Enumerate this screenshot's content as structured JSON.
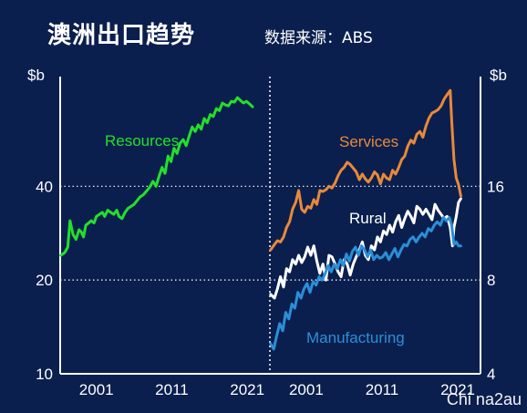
{
  "header": {
    "title": "澳洲出口趋势",
    "source": "数据来源：ABS"
  },
  "watermark": "Chi na2au",
  "chart_data": [
    {
      "type": "line",
      "panel": "left",
      "y_scale": "log",
      "unit_label": "$b",
      "ylim": [
        10,
        90
      ],
      "yticks": [
        10,
        20,
        40
      ],
      "xlim": [
        1996.2,
        2024.0
      ],
      "xticks": [
        2001,
        2011,
        2021
      ],
      "xtick_labels": [
        "2001",
        "2011",
        "2021"
      ],
      "grid": "horizontal dotted",
      "series": [
        {
          "name": "Resources",
          "color": "#22e02a",
          "x": [
            1996.3,
            1996.8,
            1997.2,
            1997.5,
            1997.9,
            1998.3,
            1998.7,
            1999.0,
            1999.3,
            1999.6,
            2000.0,
            2000.3,
            2000.7,
            2001.0,
            2001.4,
            2001.8,
            2002.1,
            2002.5,
            2002.9,
            2003.3,
            2003.7,
            2004.0,
            2004.4,
            2004.8,
            2005.2,
            2005.6,
            2006.0,
            2006.4,
            2006.8,
            2007.2,
            2007.6,
            2008.0,
            2008.5,
            2008.9,
            2009.3,
            2009.7,
            2010.1,
            2010.5,
            2010.9,
            2011.3,
            2011.7,
            2012.1,
            2012.5,
            2012.9,
            2013.3,
            2013.7,
            2014.1,
            2014.5,
            2014.9,
            2015.3,
            2015.7,
            2016.1,
            2016.5,
            2016.9,
            2017.3,
            2017.7,
            2018.1,
            2018.5,
            2018.9,
            2019.3,
            2019.7,
            2020.1,
            2020.5,
            2020.9,
            2021.3,
            2021.7
          ],
          "y": [
            24.0,
            24.5,
            25.5,
            31.0,
            28.0,
            27.0,
            29.0,
            28.5,
            27.5,
            30.0,
            30.5,
            31.0,
            30.5,
            32.0,
            32.5,
            33.0,
            32.0,
            33.5,
            33.0,
            32.5,
            33.5,
            32.0,
            31.5,
            33.0,
            34.0,
            34.5,
            35.0,
            36.0,
            37.0,
            37.5,
            38.5,
            39.5,
            41.5,
            40.0,
            43.0,
            46.0,
            44.0,
            50.0,
            48.0,
            53.0,
            51.0,
            55.0,
            56.5,
            54.0,
            58.0,
            62.0,
            60.0,
            63.0,
            61.0,
            66.0,
            64.0,
            68.0,
            67.0,
            71.0,
            70.0,
            74.0,
            73.0,
            72.5,
            75.0,
            74.5,
            77.0,
            75.5,
            74.0,
            75.0,
            73.5,
            72.0
          ]
        }
      ],
      "annotations": [
        "Resources"
      ]
    },
    {
      "type": "line",
      "panel": "right",
      "y_scale": "log",
      "unit_label": "$b",
      "ylim": [
        4,
        36
      ],
      "yticks": [
        4,
        8,
        16
      ],
      "xlim": [
        1996.2,
        2024.0
      ],
      "xticks": [
        2001,
        2011,
        2021
      ],
      "xtick_labels": [
        "2001",
        "2011",
        "2021"
      ],
      "grid": "horizontal dotted",
      "series": [
        {
          "name": "Services",
          "color": "#e8893a",
          "x": [
            1996.3,
            1996.8,
            1997.2,
            1997.6,
            1998.0,
            1998.4,
            1998.8,
            1999.2,
            1999.6,
            2000.0,
            2000.4,
            2000.8,
            2001.2,
            2001.6,
            2002.0,
            2002.4,
            2002.8,
            2003.2,
            2003.6,
            2004.0,
            2004.4,
            2004.8,
            2005.2,
            2005.6,
            2006.0,
            2006.4,
            2006.8,
            2007.2,
            2007.6,
            2008.0,
            2008.4,
            2008.8,
            2009.2,
            2009.6,
            2010.0,
            2010.4,
            2010.8,
            2011.2,
            2011.6,
            2012.0,
            2012.4,
            2012.8,
            2013.2,
            2013.6,
            2014.0,
            2014.4,
            2014.8,
            2015.2,
            2015.6,
            2016.0,
            2016.4,
            2016.8,
            2017.2,
            2017.6,
            2018.0,
            2018.4,
            2018.8,
            2019.2,
            2019.6,
            2020.0,
            2020.2,
            2020.5,
            2020.8,
            2021.1,
            2021.4
          ],
          "y": [
            10.0,
            10.4,
            10.7,
            10.6,
            11.0,
            11.8,
            12.3,
            13.5,
            14.2,
            15.5,
            13.5,
            13.2,
            13.8,
            13.6,
            14.5,
            14.0,
            15.5,
            15.4,
            15.6,
            16.0,
            15.8,
            16.4,
            17.3,
            18.0,
            18.4,
            19.1,
            18.8,
            18.3,
            17.8,
            16.8,
            17.5,
            16.9,
            16.5,
            17.0,
            17.8,
            17.4,
            16.3,
            17.5,
            17.0,
            16.8,
            18.0,
            17.5,
            18.4,
            19.5,
            20.0,
            21.5,
            22.5,
            22.0,
            23.5,
            24.0,
            23.0,
            25.0,
            26.5,
            27.5,
            27.8,
            28.2,
            29.0,
            30.5,
            31.5,
            32.5,
            26.0,
            19.5,
            17.0,
            16.2,
            14.9
          ]
        },
        {
          "name": "Rural",
          "color": "#ffffff",
          "x": [
            1996.3,
            1996.8,
            1997.2,
            1997.6,
            1998.0,
            1998.4,
            1998.8,
            1999.2,
            1999.6,
            2000.0,
            2000.4,
            2000.8,
            2001.2,
            2001.6,
            2002.0,
            2002.4,
            2002.8,
            2003.2,
            2003.6,
            2004.0,
            2004.4,
            2004.8,
            2005.2,
            2005.6,
            2006.0,
            2006.4,
            2006.8,
            2007.2,
            2007.6,
            2008.0,
            2008.4,
            2008.8,
            2009.2,
            2009.6,
            2010.0,
            2010.4,
            2010.8,
            2011.2,
            2011.6,
            2012.0,
            2012.4,
            2012.8,
            2013.2,
            2013.6,
            2014.0,
            2014.4,
            2014.8,
            2015.2,
            2015.6,
            2016.0,
            2016.4,
            2016.8,
            2017.2,
            2017.6,
            2018.0,
            2018.4,
            2018.8,
            2019.2,
            2019.6,
            2020.0,
            2020.3,
            2020.5,
            2020.8,
            2021.1,
            2021.4
          ],
          "y": [
            7.2,
            7.0,
            7.5,
            8.2,
            7.6,
            8.7,
            8.5,
            9.3,
            9.0,
            9.6,
            9.1,
            9.5,
            10.2,
            9.6,
            10.3,
            9.2,
            8.4,
            9.0,
            8.0,
            9.6,
            9.5,
            9.0,
            8.5,
            8.2,
            9.3,
            9.0,
            8.3,
            9.0,
            9.5,
            10.0,
            10.6,
            9.6,
            9.3,
            10.3,
            10.0,
            11.0,
            10.6,
            11.5,
            11.2,
            12.0,
            11.4,
            12.3,
            12.9,
            11.8,
            12.6,
            13.3,
            12.8,
            12.2,
            13.8,
            13.5,
            13.0,
            13.5,
            13.0,
            12.5,
            14.0,
            13.4,
            13.0,
            12.6,
            12.8,
            11.8,
            10.3,
            11.8,
            12.8,
            14.2,
            14.6
          ]
        },
        {
          "name": "Manufacturing",
          "color": "#2a8fd8",
          "x": [
            1996.3,
            1996.7,
            1997.1,
            1997.5,
            1997.9,
            1998.3,
            1998.7,
            1999.1,
            1999.5,
            1999.9,
            2000.3,
            2000.7,
            2001.1,
            2001.5,
            2001.9,
            2002.3,
            2002.7,
            2003.1,
            2003.5,
            2003.9,
            2004.3,
            2004.7,
            2005.1,
            2005.5,
            2005.9,
            2006.3,
            2006.7,
            2007.1,
            2007.5,
            2007.9,
            2008.3,
            2008.7,
            2009.1,
            2009.5,
            2009.9,
            2010.3,
            2010.7,
            2011.1,
            2011.5,
            2011.9,
            2012.3,
            2012.7,
            2013.1,
            2013.5,
            2013.9,
            2014.3,
            2014.7,
            2015.1,
            2015.5,
            2015.9,
            2016.3,
            2016.7,
            2017.1,
            2017.5,
            2017.9,
            2018.3,
            2018.7,
            2019.1,
            2019.5,
            2019.9,
            2020.2,
            2020.5,
            2020.8,
            2021.1,
            2021.4
          ],
          "y": [
            5.0,
            4.8,
            5.3,
            5.8,
            5.5,
            6.3,
            6.0,
            6.7,
            6.5,
            7.3,
            7.0,
            7.5,
            7.8,
            7.3,
            7.9,
            7.7,
            8.2,
            8.0,
            8.4,
            8.9,
            8.5,
            9.0,
            8.7,
            9.3,
            8.9,
            9.7,
            9.2,
            9.9,
            10.2,
            9.6,
            10.3,
            10.0,
            9.5,
            10.0,
            9.3,
            9.6,
            9.4,
            9.5,
            9.8,
            9.3,
            9.7,
            10.1,
            9.5,
            10.0,
            10.4,
            10.3,
            10.8,
            11.0,
            10.6,
            11.0,
            11.3,
            11.0,
            11.7,
            11.5,
            12.0,
            12.3,
            12.0,
            12.7,
            12.4,
            12.7,
            12.0,
            10.4,
            10.6,
            10.3,
            10.3
          ]
        }
      ],
      "annotations": [
        "Services",
        "Rural",
        "Manufacturing"
      ]
    }
  ]
}
